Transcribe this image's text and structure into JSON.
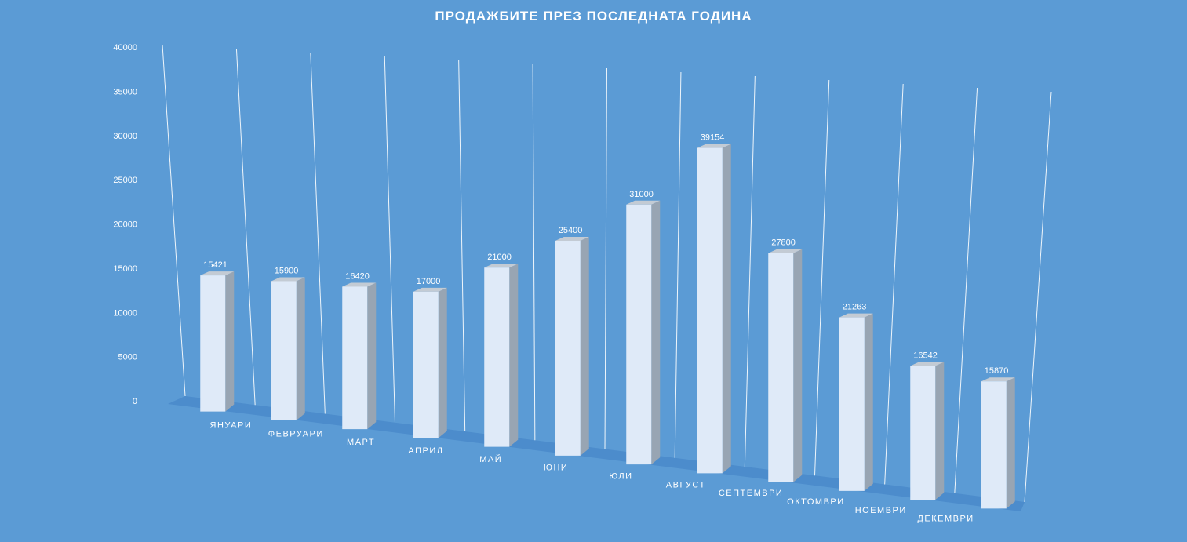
{
  "chart_data": {
    "type": "bar",
    "title": "ПРОДАЖБИТЕ ПРЕЗ ПОСЛЕДНАТА ГОДИНА",
    "categories": [
      "ЯНУАРИ",
      "ФЕВРУАРИ",
      "МАРТ",
      "АПРИЛ",
      "МАЙ",
      "ЮНИ",
      "ЮЛИ",
      "АВГУСТ",
      "СЕПТЕМВРИ",
      "ОКТОМВРИ",
      "НОЕМВРИ",
      "ДЕКЕМВРИ"
    ],
    "values": [
      15421,
      15900,
      16420,
      17000,
      21000,
      25400,
      31000,
      39154,
      27800,
      21263,
      16542,
      15870
    ],
    "ylim": [
      0,
      40000
    ],
    "yticks": [
      0,
      5000,
      10000,
      15000,
      20000,
      25000,
      30000,
      35000,
      40000
    ],
    "grid": true,
    "legend": "none",
    "colors": {
      "background": "#5b9bd5",
      "bar_front": "#dfeaf8",
      "bar_side": "#98a5b3",
      "bar_top": "#c3cbd4",
      "floor": "#3f7fc4",
      "grid": "#ffffff"
    }
  }
}
